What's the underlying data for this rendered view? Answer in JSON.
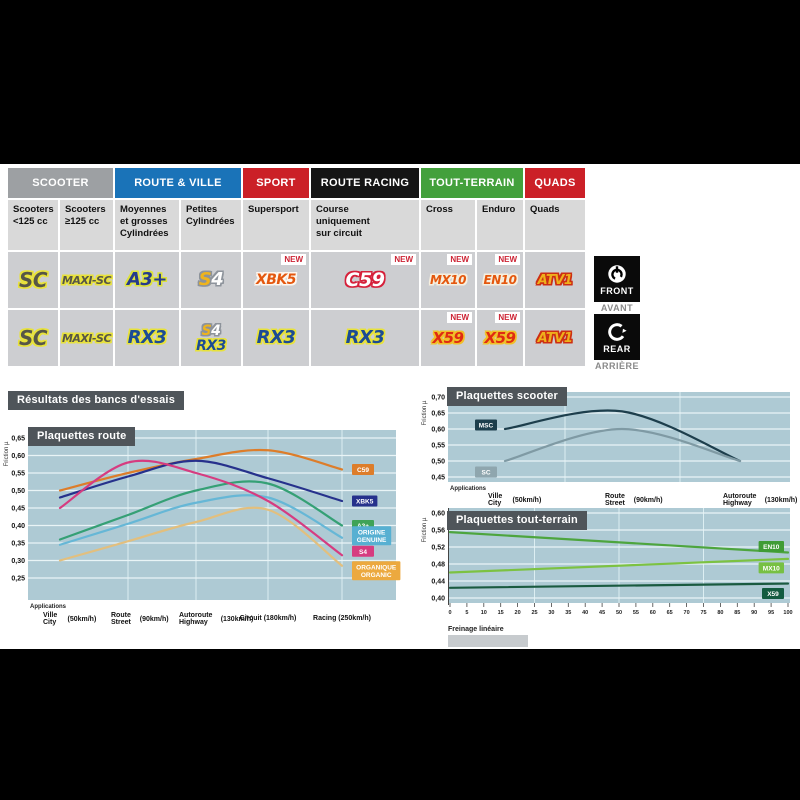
{
  "results_title": "Résultats des bancs d'essais",
  "new_label": "NEW",
  "table": {
    "groups": [
      {
        "id": "scooter",
        "label": "SCOOTER",
        "color": "#9da0a3",
        "span": 2
      },
      {
        "id": "route-ville",
        "label": "ROUTE & VILLE",
        "color": "#1a73b8",
        "span": 2
      },
      {
        "id": "sport",
        "label": "SPORT",
        "color": "#cb2027",
        "span": 1
      },
      {
        "id": "route-racing",
        "label": "ROUTE RACING",
        "color": "#151515",
        "span": 1
      },
      {
        "id": "tout-terrain",
        "label": "TOUT-TERRAIN",
        "color": "#43a03c",
        "span": 2
      },
      {
        "id": "quads",
        "label": "QUADS",
        "color": "#cb2027",
        "span": 1
      }
    ],
    "columns": [
      "Scooters\n<125 cc",
      "Scooters\n≥125 cc",
      "Moyennes\net grosses\nCylindrées",
      "Petites\nCylindrées",
      "Supersport",
      "Course\nuniquement\nsur circuit",
      "Cross",
      "Enduro",
      "Quads"
    ],
    "rows": [
      {
        "id": "front",
        "cells": [
          {
            "logos": [
              "sc"
            ]
          },
          {
            "logos": [
              "maxisc"
            ]
          },
          {
            "logos": [
              "a3"
            ]
          },
          {
            "logos": [
              "s4"
            ]
          },
          {
            "logos": [
              "xbk5"
            ],
            "new": true
          },
          {
            "logos": [
              "c59"
            ],
            "new": true
          },
          {
            "logos": [
              "mx10"
            ],
            "new": true
          },
          {
            "logos": [
              "en10"
            ],
            "new": true
          },
          {
            "logos": [
              "atv1"
            ]
          }
        ]
      },
      {
        "id": "rear",
        "cells": [
          {
            "logos": [
              "sc"
            ]
          },
          {
            "logos": [
              "maxisc"
            ]
          },
          {
            "logos": [
              "rx3"
            ]
          },
          {
            "logos": [
              "s4",
              "rx3"
            ]
          },
          {
            "logos": [
              "rx3"
            ]
          },
          {
            "logos": [
              "rx3"
            ]
          },
          {
            "logos": [
              "x59"
            ],
            "new": true
          },
          {
            "logos": [
              "x59"
            ],
            "new": true
          },
          {
            "logos": [
              "atv1"
            ]
          }
        ]
      }
    ],
    "front_label": "FRONT",
    "front_sub": "AVANT",
    "rear_label": "REAR",
    "rear_sub": "ARRIÈRE"
  },
  "logos": {
    "sc": "SC",
    "maxisc": "MAXI-SC",
    "a3": "A3+",
    "s4": "S4",
    "xbk5": "XBK5",
    "c59": "C59",
    "mx10": "MX10",
    "en10": "EN10",
    "atv1": "ATV1",
    "rx3": "RX3",
    "x59": "X59"
  },
  "chart_data": [
    {
      "id": "route",
      "type": "line",
      "title": "Plaquettes route",
      "ylabel": "Friction µ",
      "yticks": [
        "0,65",
        "0,60",
        "0,55",
        "0,50",
        "0,45",
        "0,40",
        "0,35",
        "0,30",
        "0,25"
      ],
      "ylim": [
        0.25,
        0.65
      ],
      "x_axis_title": "Applications",
      "categories": [
        {
          "fr": "Ville",
          "en": "City",
          "speed": "(50km/h)"
        },
        {
          "fr": "Route",
          "en": "Street",
          "speed": "(90km/h)"
        },
        {
          "fr": "Autoroute",
          "en": "Highway",
          "speed": "(130km/h)"
        },
        {
          "fr": "Circuit (180km/h)"
        },
        {
          "fr": "Racing (250km/h)"
        }
      ],
      "series": [
        {
          "name": "C59",
          "color": "#dd7d2a",
          "badge_bg": "#dd7d2a",
          "badge_lines": [
            "C59"
          ],
          "values": [
            0.5,
            0.55,
            0.59,
            0.615,
            0.56
          ]
        },
        {
          "name": "XBK5",
          "color": "#26318c",
          "badge_bg": "#26318c",
          "badge_lines": [
            "XBK5"
          ],
          "values": [
            0.48,
            0.54,
            0.585,
            0.535,
            0.47
          ]
        },
        {
          "name": "A3+",
          "color": "#35a075",
          "badge_bg": "#3fa357",
          "badge_lines": [
            "A3+"
          ],
          "values": [
            0.36,
            0.43,
            0.5,
            0.52,
            0.4
          ]
        },
        {
          "name": "ORIGINE / GENUINE",
          "color": "#66b7d6",
          "badge_bg": "#57b0d2",
          "badge_lines": [
            "ORIGINE",
            "GENUINE"
          ],
          "values": [
            0.345,
            0.405,
            0.465,
            0.48,
            0.365
          ]
        },
        {
          "name": "S4",
          "color": "#d63c80",
          "badge_bg": "#d63c80",
          "badge_lines": [
            "S4"
          ],
          "values": [
            0.45,
            0.58,
            0.55,
            0.47,
            0.315
          ]
        },
        {
          "name": "ORGANIQUE / ORGANIC",
          "color": "#e2bf7e",
          "badge_bg": "#eca93f",
          "badge_lines": [
            "ORGANIQUE",
            "ORGANIC"
          ],
          "values": [
            0.3,
            0.355,
            0.41,
            0.445,
            0.285
          ]
        }
      ],
      "legend_position": "right",
      "grid": true
    },
    {
      "id": "scooter",
      "type": "line",
      "title": "Plaquettes scooter",
      "ylabel": "Friction µ",
      "yticks": [
        "0,70",
        "0,65",
        "0,60",
        "0,55",
        "0,50",
        "0,45"
      ],
      "ylim": [
        0.45,
        0.7
      ],
      "x_axis_title": "Applications",
      "categories": [
        {
          "fr": "Ville",
          "en": "City",
          "speed": "(50km/h)"
        },
        {
          "fr": "Route",
          "en": "Street",
          "speed": "(90km/h)"
        },
        {
          "fr": "Autoroute",
          "en": "Highway",
          "speed": "(130km/h)"
        }
      ],
      "series": [
        {
          "name": "MSC",
          "color": "#1d3e4c",
          "badge_bg": "#1d3e4c",
          "badge_lines": [
            "MSC"
          ],
          "values": [
            0.6,
            0.655,
            0.5
          ]
        },
        {
          "name": "SC",
          "color": "#7f9aa4",
          "badge_bg": "#8fa6ae",
          "badge_lines": [
            "SC"
          ],
          "values": [
            0.5,
            0.6,
            0.5
          ]
        }
      ],
      "legend_position": "left",
      "grid": true
    },
    {
      "id": "tout-terrain",
      "type": "line",
      "title": "Plaquettes tout-terrain",
      "ylabel": "Friction µ",
      "yticks": [
        "0,60",
        "0,56",
        "0,52",
        "0,48",
        "0,44",
        "0,40"
      ],
      "ylim": [
        0.4,
        0.6
      ],
      "xlabel": "Freinage linéaire",
      "xticks": [
        0,
        5,
        10,
        15,
        20,
        25,
        30,
        35,
        40,
        45,
        50,
        55,
        60,
        65,
        70,
        75,
        80,
        85,
        90,
        95,
        100
      ],
      "xlim": [
        0,
        100
      ],
      "series": [
        {
          "name": "EN10",
          "color": "#4da53e",
          "badge_bg": "#3f9c35",
          "badge_lines": [
            "EN10"
          ],
          "x": [
            0,
            100
          ],
          "values": [
            0.555,
            0.507
          ]
        },
        {
          "name": "MX10",
          "color": "#7cc242",
          "badge_bg": "#77c043",
          "badge_lines": [
            "MX10"
          ],
          "x": [
            0,
            100
          ],
          "values": [
            0.46,
            0.492
          ]
        },
        {
          "name": "X59",
          "color": "#1a5a40",
          "badge_bg": "#135c40",
          "badge_lines": [
            "X59"
          ],
          "x": [
            0,
            100
          ],
          "values": [
            0.424,
            0.434
          ]
        }
      ],
      "legend_position": "right-inside",
      "grid": true
    }
  ]
}
